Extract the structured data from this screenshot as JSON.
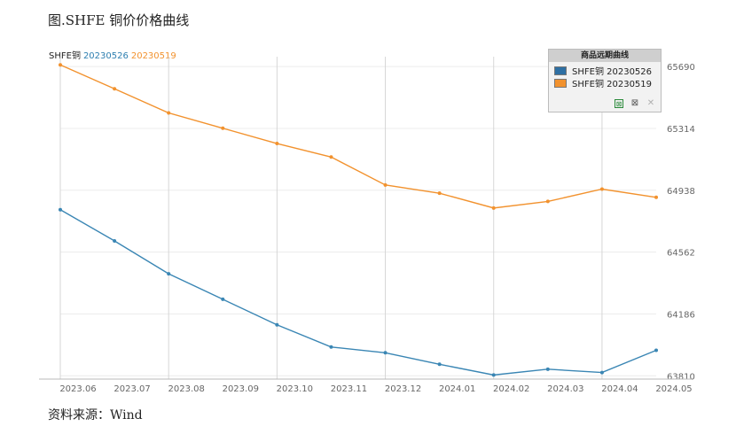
{
  "figure_title": "图.SHFE 铜价价格曲线",
  "source_label": "资料来源：Wind",
  "series_header": {
    "prefix": "SHFE铜",
    "series1": "20230526",
    "series2": "20230519"
  },
  "legend": {
    "title": "商品远期曲线",
    "items": [
      "SHFE铜 20230526",
      "SHFE铜 20230519"
    ],
    "tools": {
      "excel": "⊠",
      "edit": "⊠",
      "close": "✕"
    }
  },
  "colors": {
    "series1": "#3a86b4",
    "series2": "#f2922e",
    "grid": "#dcdcdc",
    "axis_text": "#666666"
  },
  "chart_data": {
    "type": "line",
    "categories": [
      "2023.06",
      "2023.07",
      "2023.08",
      "2023.09",
      "2023.10",
      "2023.11",
      "2023.12",
      "2024.01",
      "2024.02",
      "2024.03",
      "2024.04",
      "2024.05"
    ],
    "series": [
      {
        "name": "SHFE铜 20230526",
        "x": [
          0,
          1,
          2,
          3,
          4,
          5,
          6,
          7,
          8,
          9,
          10,
          11
        ],
        "values": [
          64820,
          64630,
          64430,
          64275,
          64120,
          63985,
          63950,
          63880,
          63815,
          63850,
          63830,
          63965
        ]
      },
      {
        "name": "SHFE铜 20230519",
        "x": [
          0,
          1,
          2,
          3,
          4,
          5,
          6,
          7,
          8,
          9,
          10,
          11
        ],
        "values": [
          65700,
          65555,
          65408,
          65315,
          65222,
          65140,
          64970,
          64920,
          64830,
          64870,
          64945,
          64895
        ]
      }
    ],
    "y_ticks": [
      63810,
      64186,
      64562,
      64938,
      65314,
      65690
    ],
    "ylim": [
      63790,
      65750
    ],
    "grid": true,
    "legend_position": "top-right",
    "y_axis_position": "right"
  }
}
